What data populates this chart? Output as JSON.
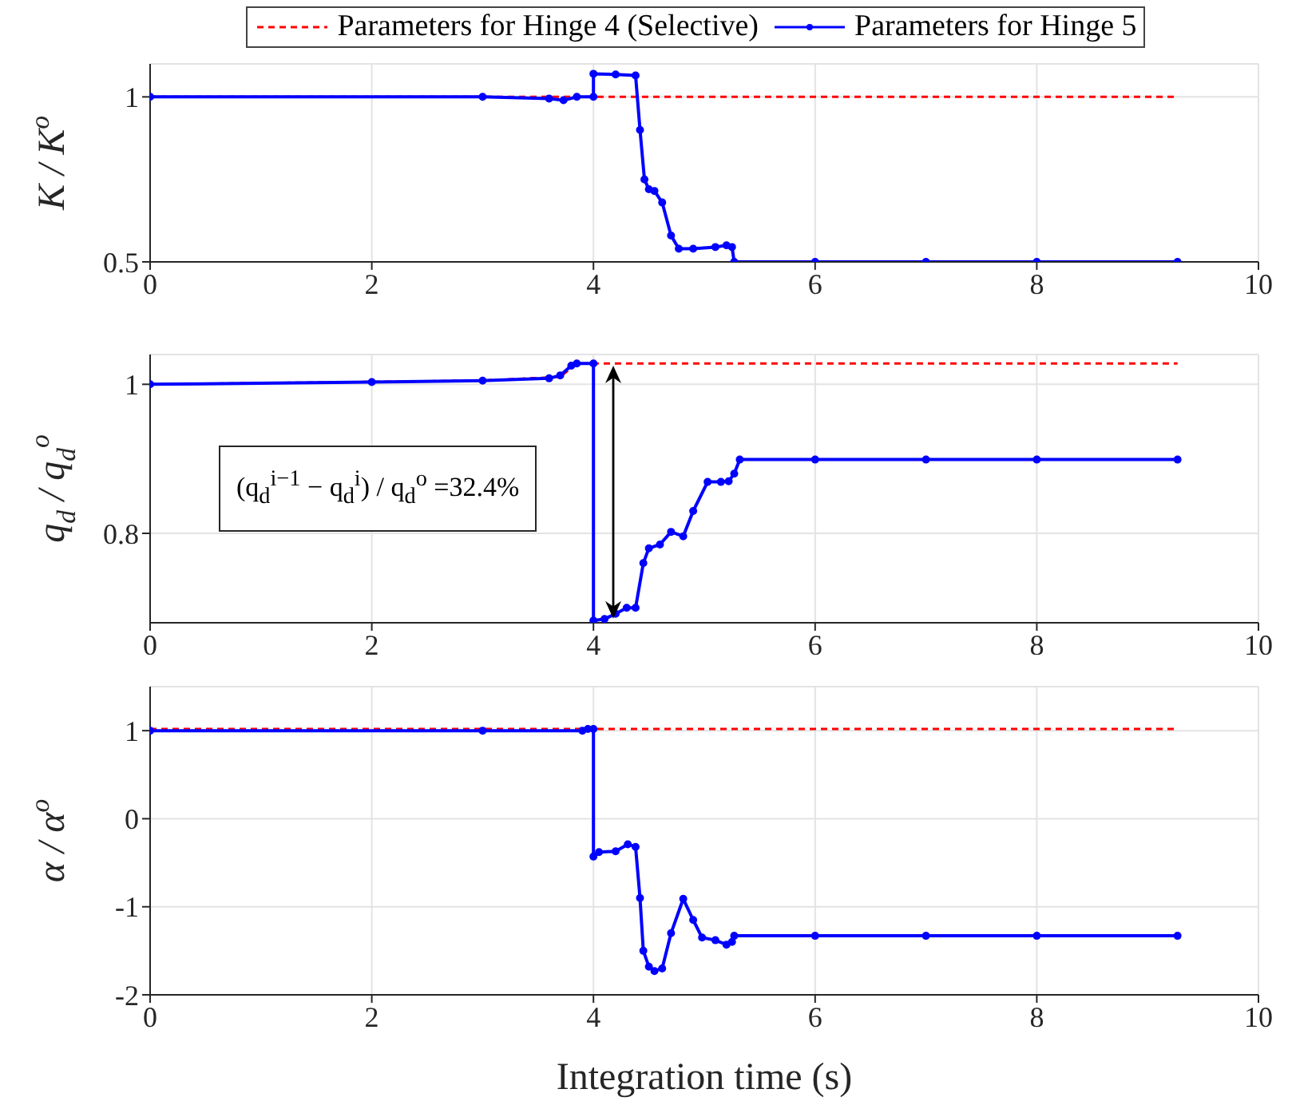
{
  "chart_data": [
    {
      "type": "line",
      "ylabel": "K / K$^{o}$",
      "xlim": [
        0,
        10
      ],
      "xticks": [
        0,
        2,
        4,
        6,
        8,
        10
      ],
      "ylim": [
        0.5,
        1.1
      ],
      "yticks": [
        0.5,
        1
      ],
      "grid": true,
      "legend": "top",
      "series": [
        {
          "name": "Parameters for Hinge 4 (Selective)",
          "color": "#ff0000",
          "line_style": "dashed",
          "marker": "none",
          "x": [
            0,
            9.27
          ],
          "values": [
            1,
            1
          ]
        },
        {
          "name": "Parameters for Hinge 5",
          "color": "#0000ff",
          "line_style": "solid",
          "marker": "circle",
          "x": [
            0,
            3,
            3.6,
            3.73,
            3.85,
            4.0,
            4.0,
            4.2,
            4.38,
            4.42,
            4.46,
            4.5,
            4.55,
            4.62,
            4.7,
            4.77,
            4.9,
            5.1,
            5.2,
            5.25,
            5.27,
            6,
            7,
            8,
            9.27
          ],
          "values": [
            1,
            1,
            0.995,
            0.99,
            1,
            1,
            1.07,
            1.068,
            1.065,
            0.9,
            0.75,
            0.72,
            0.715,
            0.68,
            0.58,
            0.54,
            0.54,
            0.545,
            0.55,
            0.545,
            0.5,
            0.5,
            0.5,
            0.5,
            0.5
          ]
        }
      ]
    },
    {
      "type": "line",
      "ylabel": "q$_{d}$ / q$_{d}$$^{o}$",
      "xlim": [
        0,
        10
      ],
      "xticks": [
        0,
        2,
        4,
        6,
        8,
        10
      ],
      "ylim": [
        0.68,
        1.04
      ],
      "yticks": [
        0.8,
        1
      ],
      "grid": true,
      "legend": false,
      "annotations": [
        "(q$_{d}$$^{i−1}$ − q$_{d}$$^{i}$) / q$_{d}$$^{o}$ =32.4%"
      ],
      "series": [
        {
          "color": "#ff0000",
          "line_style": "dashed",
          "marker": "none",
          "x": [
            0,
            3,
            3.7,
            3.85,
            9.27
          ],
          "values": [
            1,
            1.005,
            1.01,
            1.028,
            1.028
          ]
        },
        {
          "color": "#0000ff",
          "line_style": "solid",
          "marker": "circle",
          "x": [
            0,
            2,
            3,
            3.6,
            3.7,
            3.8,
            3.85,
            4.0,
            4.0,
            4.1,
            4.2,
            4.3,
            4.38,
            4.45,
            4.5,
            4.6,
            4.7,
            4.81,
            4.9,
            5.03,
            5.15,
            5.22,
            5.27,
            5.32,
            6,
            7,
            8,
            9.27
          ],
          "values": [
            1,
            1.003,
            1.005,
            1.008,
            1.012,
            1.025,
            1.028,
            1.028,
            0.683,
            0.685,
            0.692,
            0.7,
            0.7,
            0.76,
            0.78,
            0.785,
            0.802,
            0.796,
            0.83,
            0.869,
            0.869,
            0.87,
            0.88,
            0.899,
            0.899,
            0.899,
            0.899,
            0.899
          ]
        }
      ]
    },
    {
      "type": "line",
      "xlabel": "Integration time (s)",
      "ylabel": "α / α$^{o}$",
      "xlim": [
        0,
        10
      ],
      "xticks": [
        0,
        2,
        4,
        6,
        8,
        10
      ],
      "ylim": [
        -2,
        1.5
      ],
      "yticks": [
        -2,
        -1,
        0,
        1
      ],
      "grid": true,
      "legend": false,
      "series": [
        {
          "color": "#ff0000",
          "line_style": "dashed",
          "marker": "none",
          "x": [
            0,
            9.27
          ],
          "values": [
            1.02,
            1.02
          ]
        },
        {
          "color": "#0000ff",
          "line_style": "solid",
          "marker": "circle",
          "x": [
            0,
            3,
            3.9,
            3.95,
            4.0,
            4.0,
            4.05,
            4.2,
            4.31,
            4.38,
            4.42,
            4.45,
            4.5,
            4.55,
            4.62,
            4.7,
            4.81,
            4.9,
            4.98,
            5.1,
            5.2,
            5.25,
            5.27,
            6,
            7,
            8,
            9.27
          ],
          "values": [
            1,
            1,
            1,
            1.02,
            1.02,
            -0.43,
            -0.38,
            -0.37,
            -0.29,
            -0.32,
            -0.9,
            -1.5,
            -1.68,
            -1.73,
            -1.7,
            -1.3,
            -0.91,
            -1.15,
            -1.35,
            -1.38,
            -1.43,
            -1.4,
            -1.33,
            -1.33,
            -1.33,
            -1.33,
            -1.33
          ]
        }
      ]
    }
  ]
}
